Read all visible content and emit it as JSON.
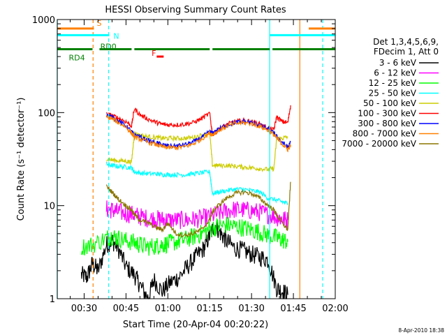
{
  "chart_data": {
    "type": "line",
    "title": "HESSI Observing Summary Count Rates",
    "xlabel": "Start Time (20-Apr-04 00:20:22)",
    "ylabel": "Count Rate (s⁻¹ detector⁻¹)",
    "yscale": "log",
    "ylim": [
      1,
      1000
    ],
    "xlim_minutes": [
      20.37,
      120
    ],
    "grid": false,
    "legend_placement": "right",
    "yticks": [
      {
        "label": "1",
        "value": 1
      },
      {
        "label": "10",
        "value": 10
      },
      {
        "label": "100",
        "value": 100
      },
      {
        "label": "1000",
        "value": 1000
      }
    ],
    "xticks": [
      {
        "label": "00:30",
        "min": 30
      },
      {
        "label": "00:45",
        "min": 45
      },
      {
        "label": "01:00",
        "min": 60
      },
      {
        "label": "01:15",
        "min": 75
      },
      {
        "label": "01:30",
        "min": 90
      },
      {
        "label": "01:45",
        "min": 105
      },
      {
        "label": "02:00",
        "min": 120
      }
    ],
    "legend_header": [
      "Det 1,3,4,5,6,9,",
      "FDecim 1, Att 0"
    ],
    "series": [
      {
        "name": "3 - 6 keV",
        "color": "#000000",
        "points": [
          [
            29,
            1.8
          ],
          [
            31,
            1.7
          ],
          [
            33,
            2.4
          ],
          [
            35,
            2.0
          ],
          [
            38,
            3.8
          ],
          [
            40,
            4.2
          ],
          [
            42,
            3.6
          ],
          [
            45,
            2.2
          ],
          [
            48,
            1.8
          ],
          [
            50,
            1.4
          ],
          [
            53,
            1.0
          ],
          [
            55,
            1.6
          ],
          [
            58,
            1.2
          ],
          [
            61,
            1.5
          ],
          [
            64,
            1.7
          ],
          [
            67,
            2.2
          ],
          [
            70,
            2.8
          ],
          [
            73,
            3.5
          ],
          [
            75,
            4.8
          ],
          [
            77,
            6.2
          ],
          [
            79,
            5.0
          ],
          [
            81,
            4.2
          ],
          [
            84,
            3.5
          ],
          [
            87,
            3.3
          ],
          [
            90,
            3.0
          ],
          [
            93,
            2.8
          ],
          [
            96,
            2.6
          ],
          [
            99,
            1.3
          ],
          [
            101,
            1.2
          ],
          [
            103,
            1.1
          ]
        ]
      },
      {
        "name": "6 - 12 keV",
        "color": "#ff00ff",
        "points": [
          [
            38,
            9.2
          ],
          [
            40,
            9.0
          ],
          [
            42,
            8.6
          ],
          [
            45,
            8.2
          ],
          [
            48,
            8.0
          ],
          [
            50,
            7.6
          ],
          [
            53,
            7.3
          ],
          [
            56,
            7.2
          ],
          [
            58,
            7.1
          ],
          [
            60,
            7.0
          ],
          [
            63,
            7.0
          ],
          [
            66,
            7.0
          ],
          [
            69,
            7.1
          ],
          [
            72,
            7.3
          ],
          [
            75,
            7.6
          ],
          [
            78,
            8.2
          ],
          [
            81,
            8.8
          ],
          [
            84,
            9.1
          ],
          [
            87,
            9.0
          ],
          [
            90,
            8.8
          ],
          [
            93,
            8.5
          ],
          [
            96,
            8.0
          ],
          [
            99,
            7.5
          ],
          [
            101,
            7.2
          ],
          [
            103,
            7.0
          ]
        ]
      },
      {
        "name": "12 - 25 keV",
        "color": "#00ff00",
        "points": [
          [
            29,
            3.6
          ],
          [
            33,
            3.8
          ],
          [
            38,
            4.5
          ],
          [
            40,
            4.7
          ],
          [
            42,
            4.5
          ],
          [
            45,
            4.2
          ],
          [
            48,
            4.0
          ],
          [
            50,
            3.8
          ],
          [
            53,
            3.6
          ],
          [
            56,
            3.7
          ],
          [
            58,
            3.8
          ],
          [
            60,
            3.9
          ],
          [
            63,
            4.1
          ],
          [
            66,
            4.3
          ],
          [
            69,
            4.6
          ],
          [
            72,
            5.0
          ],
          [
            75,
            5.6
          ],
          [
            78,
            6.0
          ],
          [
            81,
            6.2
          ],
          [
            84,
            6.0
          ],
          [
            87,
            5.8
          ],
          [
            90,
            5.5
          ],
          [
            93,
            5.2
          ],
          [
            96,
            4.8
          ],
          [
            99,
            4.5
          ],
          [
            101,
            4.3
          ],
          [
            103,
            4.1
          ]
        ]
      },
      {
        "name": "25 - 50 keV",
        "color": "#00ffff",
        "points": [
          [
            38,
            28
          ],
          [
            40,
            27
          ],
          [
            42,
            26.5
          ],
          [
            45,
            26
          ],
          [
            47,
            25.5
          ],
          [
            48,
            23
          ],
          [
            50,
            22.5
          ],
          [
            53,
            22
          ],
          [
            56,
            22
          ],
          [
            58,
            21.5
          ],
          [
            60,
            21.5
          ],
          [
            63,
            21.5
          ],
          [
            66,
            21.5
          ],
          [
            69,
            22
          ],
          [
            72,
            22.5
          ],
          [
            75,
            23
          ],
          [
            76,
            13.5
          ],
          [
            78,
            14
          ],
          [
            81,
            14.5
          ],
          [
            84,
            15
          ],
          [
            87,
            15
          ],
          [
            90,
            14.5
          ],
          [
            93,
            14
          ],
          [
            96,
            12
          ],
          [
            99,
            11.5
          ],
          [
            101,
            11
          ],
          [
            103,
            10.5
          ]
        ]
      },
      {
        "name": "50 - 100 keV",
        "color": "#cccc00",
        "points": [
          [
            38,
            32
          ],
          [
            40,
            31
          ],
          [
            42,
            30.5
          ],
          [
            45,
            30
          ],
          [
            47,
            29.5
          ],
          [
            48,
            60
          ],
          [
            50,
            57
          ],
          [
            53,
            55
          ],
          [
            56,
            54
          ],
          [
            58,
            53
          ],
          [
            60,
            53
          ],
          [
            63,
            53
          ],
          [
            66,
            53
          ],
          [
            69,
            54
          ],
          [
            72,
            57
          ],
          [
            75,
            61
          ],
          [
            76,
            27
          ],
          [
            78,
            27
          ],
          [
            81,
            27
          ],
          [
            84,
            26.5
          ],
          [
            87,
            26
          ],
          [
            90,
            25.5
          ],
          [
            93,
            25
          ],
          [
            96,
            24.5
          ],
          [
            98,
            25
          ],
          [
            99,
            52
          ],
          [
            101,
            53
          ],
          [
            103,
            55
          ]
        ]
      },
      {
        "name": "100 - 300 keV",
        "color": "#ff0000",
        "points": [
          [
            38,
            96
          ],
          [
            40,
            93
          ],
          [
            42,
            88
          ],
          [
            45,
            80
          ],
          [
            47,
            72
          ],
          [
            48,
            110
          ],
          [
            50,
            95
          ],
          [
            53,
            85
          ],
          [
            56,
            78
          ],
          [
            58,
            75
          ],
          [
            60,
            74
          ],
          [
            63,
            74
          ],
          [
            66,
            75
          ],
          [
            69,
            78
          ],
          [
            72,
            86
          ],
          [
            75,
            98
          ],
          [
            76,
            58
          ],
          [
            78,
            65
          ],
          [
            81,
            74
          ],
          [
            84,
            80
          ],
          [
            87,
            82
          ],
          [
            90,
            80
          ],
          [
            93,
            75
          ],
          [
            96,
            68
          ],
          [
            98,
            65
          ],
          [
            99,
            90
          ],
          [
            101,
            80
          ],
          [
            103,
            78
          ],
          [
            104,
            120
          ]
        ]
      },
      {
        "name": "300 - 800 keV",
        "color": "#0000ff",
        "points": [
          [
            38,
            94
          ],
          [
            40,
            90
          ],
          [
            42,
            82
          ],
          [
            45,
            72
          ],
          [
            47,
            62
          ],
          [
            48,
            58
          ],
          [
            50,
            55
          ],
          [
            53,
            50
          ],
          [
            56,
            47
          ],
          [
            58,
            45
          ],
          [
            60,
            44
          ],
          [
            63,
            44
          ],
          [
            66,
            45
          ],
          [
            69,
            48
          ],
          [
            72,
            54
          ],
          [
            75,
            62
          ],
          [
            76,
            60
          ],
          [
            78,
            66
          ],
          [
            81,
            73
          ],
          [
            84,
            78
          ],
          [
            87,
            80
          ],
          [
            90,
            78
          ],
          [
            93,
            73
          ],
          [
            96,
            66
          ],
          [
            98,
            60
          ],
          [
            99,
            55
          ],
          [
            101,
            48
          ],
          [
            103,
            42
          ],
          [
            104,
            48
          ]
        ]
      },
      {
        "name": "800 - 7000 keV",
        "color": "#ff8000",
        "points": [
          [
            38,
            90
          ],
          [
            40,
            86
          ],
          [
            42,
            79
          ],
          [
            45,
            70
          ],
          [
            47,
            60
          ],
          [
            48,
            55
          ],
          [
            50,
            52
          ],
          [
            53,
            48
          ],
          [
            56,
            45
          ],
          [
            58,
            43
          ],
          [
            60,
            42
          ],
          [
            63,
            42
          ],
          [
            66,
            43
          ],
          [
            69,
            46
          ],
          [
            72,
            52
          ],
          [
            75,
            60
          ],
          [
            76,
            58
          ],
          [
            78,
            64
          ],
          [
            81,
            71
          ],
          [
            84,
            76
          ],
          [
            87,
            78
          ],
          [
            90,
            76
          ],
          [
            93,
            71
          ],
          [
            96,
            64
          ],
          [
            98,
            58
          ],
          [
            99,
            53
          ],
          [
            101,
            46
          ],
          [
            103,
            40
          ],
          [
            104,
            45
          ]
        ]
      },
      {
        "name": "7000 - 20000 keV",
        "color": "#8b7500",
        "points": [
          [
            38,
            16
          ],
          [
            40,
            14
          ],
          [
            42,
            12
          ],
          [
            45,
            10
          ],
          [
            47,
            9
          ],
          [
            48,
            8
          ],
          [
            50,
            7
          ],
          [
            53,
            6.5
          ],
          [
            56,
            5.8
          ],
          [
            58,
            5.5
          ],
          [
            60,
            6.5
          ],
          [
            63,
            5.0
          ],
          [
            66,
            4.8
          ],
          [
            69,
            5.0
          ],
          [
            72,
            5.5
          ],
          [
            75,
            7.0
          ],
          [
            76,
            8.5
          ],
          [
            78,
            10
          ],
          [
            81,
            12
          ],
          [
            84,
            13.5
          ],
          [
            87,
            14
          ],
          [
            90,
            13.5
          ],
          [
            93,
            12
          ],
          [
            96,
            10
          ],
          [
            98,
            9
          ],
          [
            99,
            8
          ],
          [
            101,
            6.5
          ],
          [
            103,
            5.5
          ],
          [
            104,
            18
          ]
        ]
      }
    ],
    "flag_bars": [
      {
        "label": "S",
        "color": "#ff8000",
        "level": 800,
        "segments": [
          [
            20.37,
            33.5
          ],
          [
            110.5,
            120
          ]
        ]
      },
      {
        "label": "N",
        "color": "#00ffff",
        "level": 680,
        "segments": [
          [
            20.37,
            39.0
          ],
          [
            96.5,
            120
          ]
        ]
      },
      {
        "label": "F",
        "color": "#ff0000",
        "level": 400,
        "segments": [
          [
            56.0,
            58.5
          ]
        ]
      },
      {
        "label": "RD4",
        "color": "#008000",
        "level": 480,
        "segments": [
          [
            20.37,
            33.0
          ],
          [
            110.5,
            120
          ]
        ]
      },
      {
        "label": "RD0",
        "color": "#008000",
        "level": 480,
        "segments": [
          [
            35.5,
            47.0
          ],
          [
            48.0,
            75.0
          ],
          [
            76.0,
            96.5
          ],
          [
            97.5,
            110.5
          ]
        ]
      }
    ],
    "vertical_markers": [
      {
        "min": 20.37,
        "color": "#00ffff",
        "style": "solid"
      },
      {
        "min": 33.2,
        "color": "#ff8000",
        "style": "dashed"
      },
      {
        "min": 38.8,
        "color": "#00ffff",
        "style": "dashed"
      },
      {
        "min": 96.5,
        "color": "#00ffff",
        "style": "solid"
      },
      {
        "min": 107.3,
        "color": "#ff8000",
        "style": "solid"
      },
      {
        "min": 115.5,
        "color": "#00ffff",
        "style": "dashed"
      }
    ]
  },
  "footer": {
    "date_stamp": "8-Apr-2010 18:38"
  }
}
